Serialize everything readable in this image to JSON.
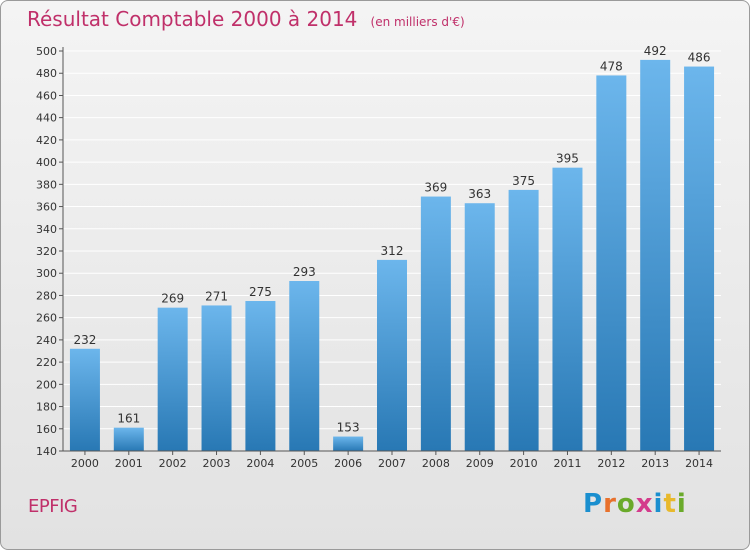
{
  "title": "Résultat Comptable 2000 à 2014",
  "unit": "(en milliers d'€)",
  "commune": "EPFIG",
  "logo": {
    "text": "Proxiti",
    "colors": [
      "#1a8fcf",
      "#e8712c",
      "#6aaa2a",
      "#d43c8c",
      "#1a8fcf",
      "#e8b92c",
      "#6aaa2a"
    ]
  },
  "colors": {
    "title": "#c0306a",
    "bar_light": "#6cb6ec",
    "bar_dark": "#2878b4",
    "grid": "#ffffff",
    "axis_text": "#333333"
  },
  "chart_data": {
    "type": "bar",
    "title": "Résultat Comptable 2000 à 2014",
    "ylabel": "(en milliers d'€)",
    "xlabel": "",
    "categories": [
      "2000",
      "2001",
      "2002",
      "2003",
      "2004",
      "2005",
      "2006",
      "2007",
      "2008",
      "2009",
      "2010",
      "2011",
      "2012",
      "2013",
      "2014"
    ],
    "values": [
      232,
      161,
      269,
      271,
      275,
      293,
      153,
      312,
      369,
      363,
      375,
      395,
      478,
      492,
      486
    ],
    "ylim": [
      140,
      500
    ],
    "yticks": [
      140,
      160,
      180,
      200,
      220,
      240,
      260,
      280,
      300,
      320,
      340,
      360,
      380,
      400,
      420,
      440,
      460,
      480,
      500
    ],
    "grid": true,
    "legend": "none"
  }
}
